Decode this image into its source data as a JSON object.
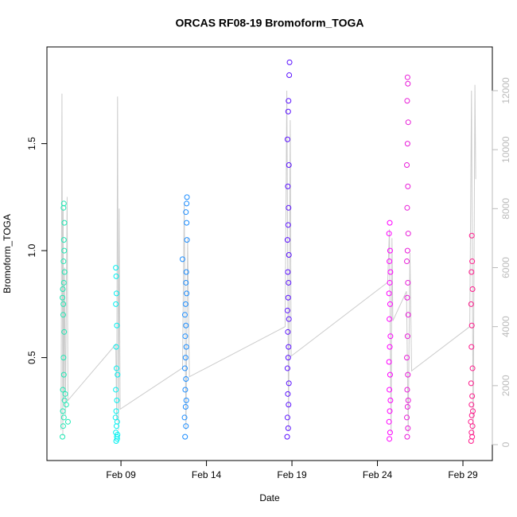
{
  "chart_data": {
    "type": "scatter",
    "title": "ORCAS RF08-19 Bromoform_TOGA",
    "x_label": "Date",
    "y_label": "Bromoform_TOGA",
    "xlim": [
      4.67,
      30.72
    ],
    "xticks": [
      {
        "value": 9,
        "label": "Feb 09"
      },
      {
        "value": 14,
        "label": "Feb 14"
      },
      {
        "value": 19,
        "label": "Feb 19"
      },
      {
        "value": 24,
        "label": "Feb 24"
      },
      {
        "value": 29,
        "label": "Feb 29"
      }
    ],
    "ylim": [
      0.019,
      1.952
    ],
    "yticks": [
      0.5,
      {
        "value": 1,
        "label": "1.0"
      },
      1.5
    ],
    "y2lim": [
      -539,
      13483
    ],
    "y2ticks": [
      0,
      2000,
      4000,
      6000,
      8000,
      10000,
      12000
    ],
    "y2_color": "#bbbbbb",
    "series": [
      {
        "mode": "line",
        "axis": "y2",
        "color": "#cccccc",
        "x": [
          5.5,
          5.55,
          5.6,
          5.62,
          5.65,
          5.7,
          5.75,
          5.85,
          5.9,
          8.7,
          8.75,
          8.8,
          8.85,
          8.9,
          8.95,
          12.6,
          12.7,
          12.8,
          12.9,
          13.0,
          18.6,
          18.7,
          18.8,
          18.9,
          18.95,
          24.6,
          24.7,
          24.8,
          24.85,
          24.9,
          25.7,
          25.8,
          25.9,
          26.0,
          29.4,
          29.5,
          29.6,
          29.7,
          29.75
        ],
        "values": [
          500,
          11900,
          300,
          8000,
          1500,
          6000,
          1000,
          8400,
          1500,
          3400,
          800,
          11800,
          500,
          8000,
          1200,
          2600,
          8200,
          500,
          7000,
          2300,
          4000,
          12000,
          500,
          11000,
          3000,
          5500,
          7300,
          400,
          7000,
          4200,
          5200,
          400,
          6500,
          2500,
          4000,
          12000,
          300,
          12200,
          9000
        ]
      },
      {
        "mode": "points",
        "color": "#1ee8b4",
        "x": [
          5.58,
          5.62,
          5.66,
          5.6,
          5.7,
          5.74,
          5.6,
          5.66,
          5.64,
          5.68,
          5.62,
          5.58,
          5.66,
          5.7,
          5.64,
          5.68,
          5.66,
          5.69,
          5.64,
          5.66,
          5.8,
          5.9,
          5.6,
          5.63
        ],
        "values": [
          0.13,
          0.18,
          0.22,
          0.25,
          0.3,
          0.33,
          0.35,
          0.42,
          0.5,
          0.62,
          0.7,
          0.78,
          0.85,
          0.9,
          0.95,
          1.0,
          1.05,
          1.13,
          1.2,
          1.22,
          0.28,
          0.2,
          0.82,
          0.75
        ]
      },
      {
        "mode": "points",
        "color": "#00f0f0",
        "x": [
          8.72,
          8.76,
          8.7,
          8.74,
          8.78,
          8.72,
          8.76,
          8.7,
          8.8,
          8.74,
          8.72,
          8.76,
          8.7,
          8.74,
          8.72,
          8.7,
          8.78,
          8.8,
          8.68
        ],
        "values": [
          0.11,
          0.13,
          0.15,
          0.18,
          0.2,
          0.25,
          0.3,
          0.35,
          0.42,
          0.45,
          0.55,
          0.65,
          0.75,
          0.8,
          0.88,
          0.92,
          0.12,
          0.14,
          0.22
        ]
      },
      {
        "mode": "points",
        "color": "#1a8cff",
        "x": [
          12.75,
          12.8,
          12.72,
          12.78,
          12.82,
          12.76,
          12.8,
          12.74,
          12.78,
          12.82,
          12.76,
          12.8,
          12.74,
          12.78,
          12.84,
          12.8,
          12.82,
          12.6,
          12.86,
          12.84,
          12.8,
          12.84,
          12.86
        ],
        "values": [
          0.13,
          0.18,
          0.22,
          0.27,
          0.3,
          0.35,
          0.4,
          0.45,
          0.5,
          0.55,
          0.6,
          0.65,
          0.7,
          0.75,
          0.8,
          0.85,
          0.9,
          0.96,
          1.05,
          1.13,
          1.18,
          1.22,
          1.25
        ]
      },
      {
        "mode": "points",
        "color": "#5a10ff",
        "x": [
          18.72,
          18.78,
          18.74,
          18.8,
          18.76,
          18.82,
          18.74,
          18.78,
          18.8,
          18.76,
          18.82,
          18.74,
          18.78,
          18.8,
          18.76,
          18.82,
          18.74,
          18.78,
          18.8,
          18.76,
          18.82,
          18.74,
          18.78,
          18.8,
          18.84,
          18.86
        ],
        "values": [
          0.13,
          0.17,
          0.22,
          0.28,
          0.33,
          0.38,
          0.45,
          0.5,
          0.55,
          0.62,
          0.68,
          0.72,
          0.78,
          0.85,
          0.9,
          0.98,
          1.05,
          1.12,
          1.2,
          1.3,
          1.4,
          1.52,
          1.65,
          1.7,
          1.82,
          1.88
        ]
      },
      {
        "mode": "points",
        "color": "#ff00ff",
        "x": [
          24.7,
          24.74,
          24.68,
          24.72,
          24.76,
          24.7,
          24.74,
          24.68,
          24.72,
          24.76,
          24.7,
          24.74,
          24.68,
          24.72,
          24.76,
          24.7,
          24.74,
          24.68,
          24.72
        ],
        "values": [
          0.12,
          0.15,
          0.2,
          0.25,
          0.3,
          0.35,
          0.42,
          0.48,
          0.55,
          0.6,
          0.68,
          0.75,
          0.8,
          0.85,
          0.9,
          0.95,
          1.0,
          1.08,
          1.13
        ]
      },
      {
        "mode": "points",
        "color": "#e81ad8",
        "x": [
          25.74,
          25.78,
          25.72,
          25.76,
          25.8,
          25.74,
          25.78,
          25.72,
          25.76,
          25.8,
          25.74,
          25.78,
          25.72,
          25.76,
          25.8,
          25.74,
          25.78,
          25.72,
          25.76,
          25.8,
          25.74,
          25.78,
          25.76
        ],
        "values": [
          0.13,
          0.17,
          0.22,
          0.27,
          0.3,
          0.35,
          0.42,
          0.5,
          0.6,
          0.7,
          0.78,
          0.85,
          0.95,
          1.0,
          1.08,
          1.2,
          1.3,
          1.4,
          1.5,
          1.6,
          1.7,
          1.78,
          1.81
        ]
      },
      {
        "mode": "points",
        "color": "#ff1a8c",
        "x": [
          29.48,
          29.54,
          29.5,
          29.56,
          29.46,
          29.52,
          29.58,
          29.5,
          29.54,
          29.48,
          29.56,
          29.5,
          29.52,
          29.48,
          29.56,
          29.5,
          29.54,
          29.52
        ],
        "values": [
          0.11,
          0.13,
          0.15,
          0.18,
          0.2,
          0.23,
          0.25,
          0.28,
          0.32,
          0.38,
          0.45,
          0.55,
          0.65,
          0.75,
          0.82,
          0.9,
          0.95,
          1.07
        ]
      }
    ]
  }
}
